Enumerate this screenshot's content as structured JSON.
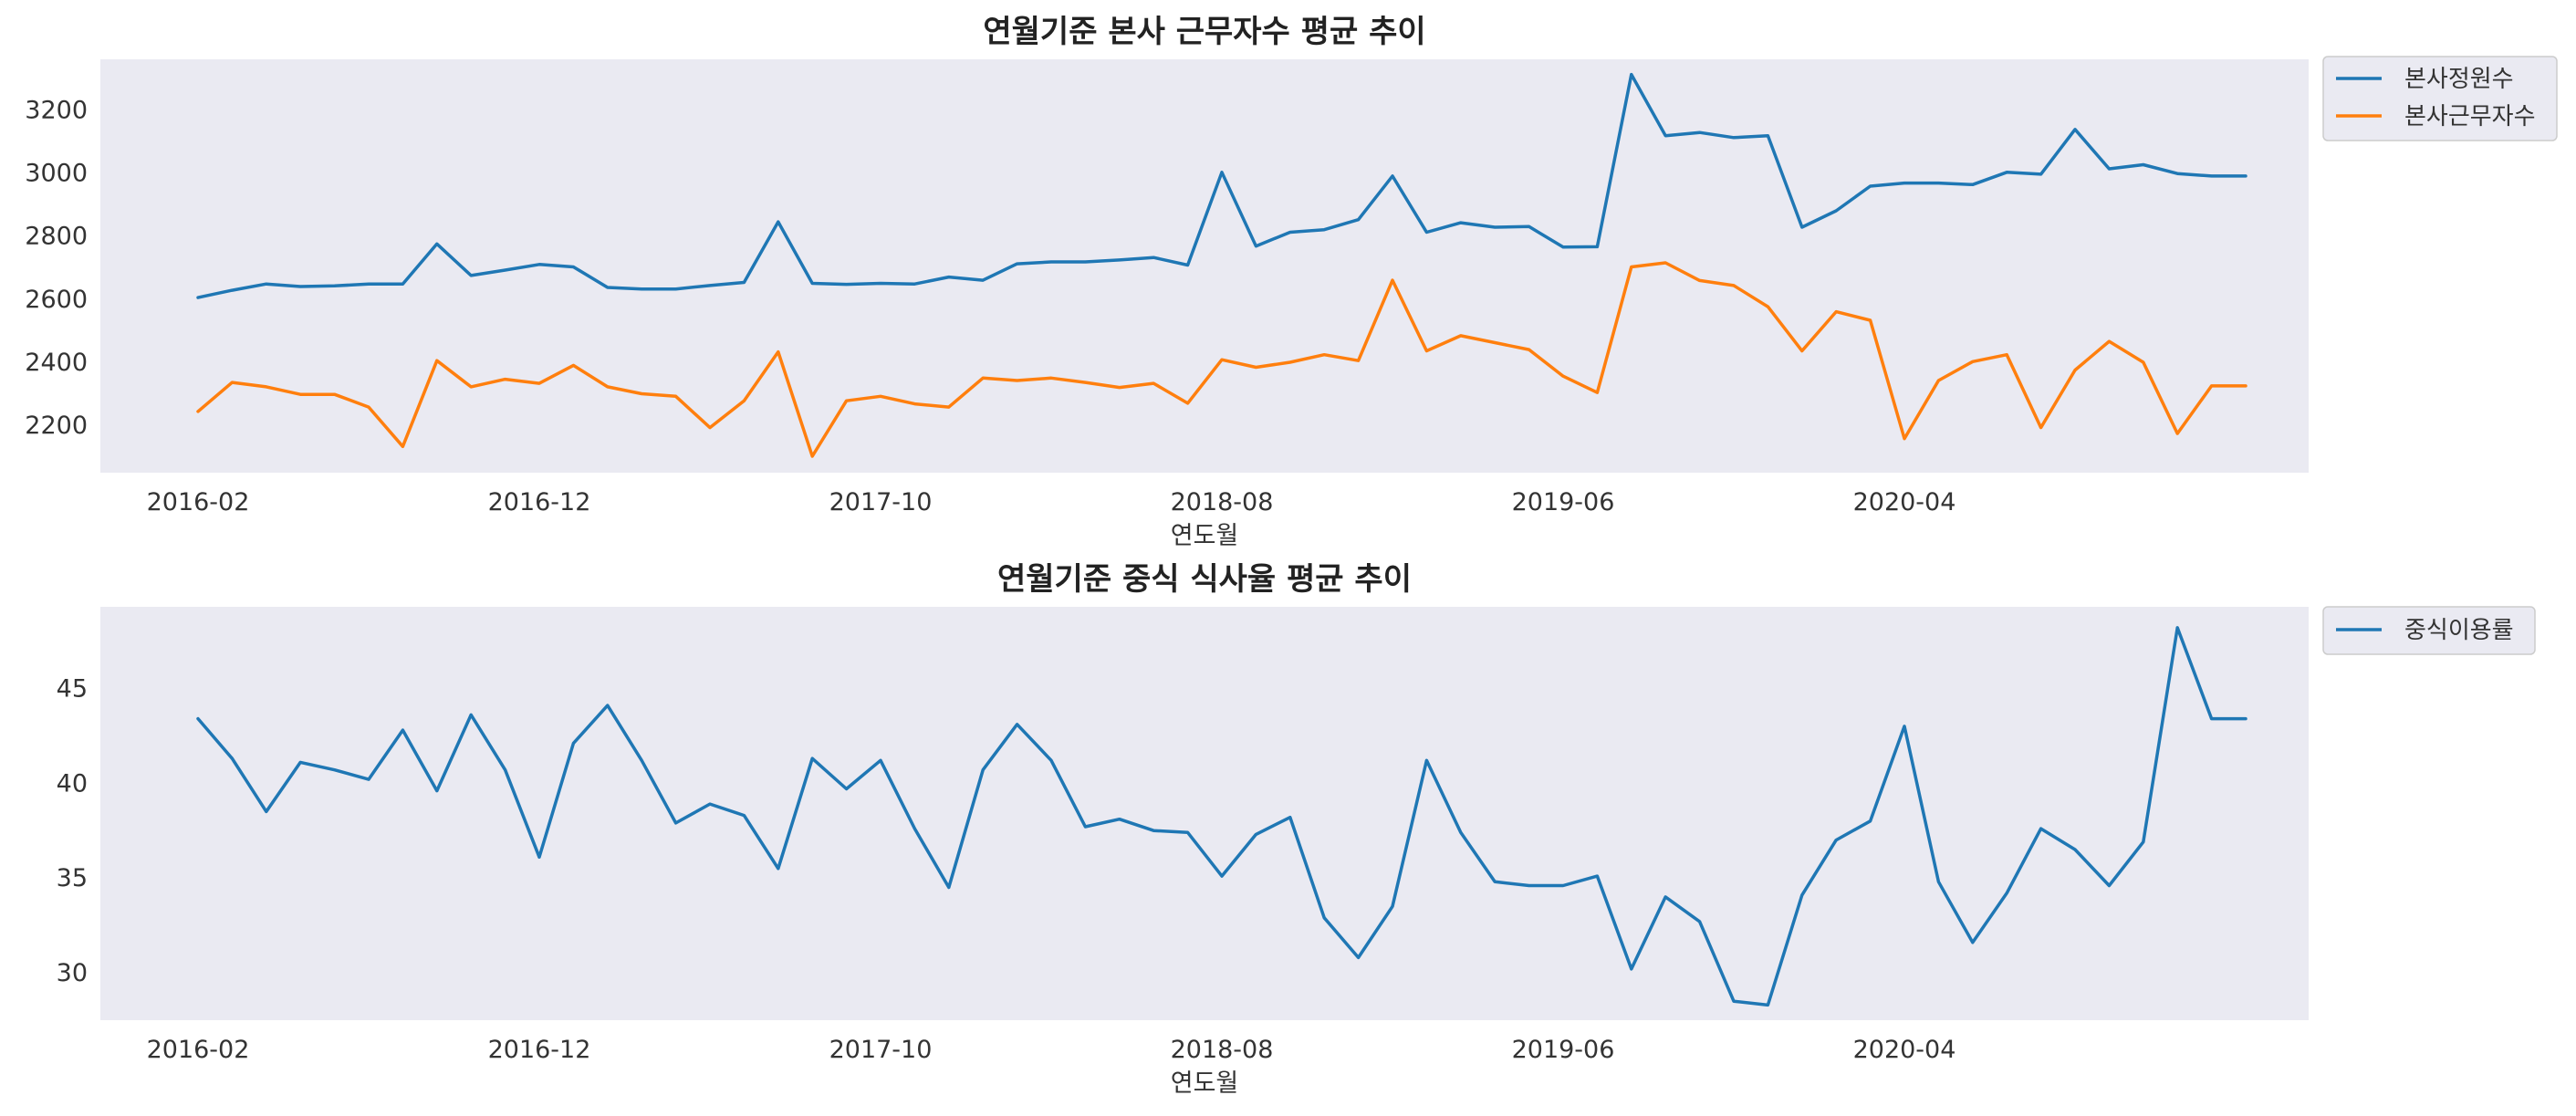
{
  "colors": {
    "background": "#EAEAF2",
    "series1": "#1F77B4",
    "series2": "#FF7F0E"
  },
  "chart_data": [
    {
      "type": "line",
      "title": "연월기준 본사 근무자수 평균 추이",
      "xlabel": "연도월",
      "ylabel": "",
      "grid": false,
      "legend_position": "outside-top-right",
      "x": [
        "2016-02",
        "2016-03",
        "2016-04",
        "2016-05",
        "2016-06",
        "2016-07",
        "2016-08",
        "2016-09",
        "2016-10",
        "2016-11",
        "2016-12",
        "2017-01",
        "2017-02",
        "2017-03",
        "2017-04",
        "2017-05",
        "2017-06",
        "2017-07",
        "2017-08",
        "2017-09",
        "2017-10",
        "2017-11",
        "2017-12",
        "2018-01",
        "2018-02",
        "2018-03",
        "2018-04",
        "2018-05",
        "2018-06",
        "2018-07",
        "2018-08",
        "2018-09",
        "2018-10",
        "2018-11",
        "2018-12",
        "2019-01",
        "2019-02",
        "2019-03",
        "2019-04",
        "2019-05",
        "2019-06",
        "2019-07",
        "2019-08",
        "2019-09",
        "2019-10",
        "2019-11",
        "2019-12",
        "2020-01",
        "2020-02",
        "2020-03",
        "2020-04",
        "2020-05",
        "2020-06",
        "2020-07",
        "2020-08",
        "2020-09",
        "2020-10",
        "2020-11",
        "2020-12",
        "2021-01",
        "2021-02"
      ],
      "xticks": [
        "2016-02",
        "2016-12",
        "2017-10",
        "2018-08",
        "2019-06",
        "2020-04"
      ],
      "yticks": [
        2200,
        2400,
        2600,
        2800,
        3000,
        3200
      ],
      "ylim": [
        2050,
        3360
      ],
      "series": [
        {
          "name": "본사정원수",
          "color": "#1F77B4",
          "values": [
            2605,
            2628,
            2648,
            2640,
            2642,
            2648,
            2648,
            2775,
            2675,
            2692,
            2710,
            2702,
            2637,
            2632,
            2632,
            2643,
            2653,
            2845,
            2650,
            2647,
            2650,
            2648,
            2670,
            2660,
            2712,
            2718,
            2718,
            2724,
            2732,
            2708,
            3002,
            2768,
            2812,
            2820,
            2852,
            2990,
            2812,
            2842,
            2828,
            2830,
            2765,
            2766,
            3312,
            3118,
            3128,
            3112,
            3118,
            2828,
            2880,
            2958,
            2968,
            2968,
            2963,
            3002,
            2996,
            3138,
            3013,
            3026,
            2998,
            2990,
            2990
          ]
        },
        {
          "name": "본사근무자수",
          "color": "#FF7F0E",
          "values": [
            2244,
            2336,
            2322,
            2298,
            2298,
            2258,
            2133,
            2405,
            2322,
            2346,
            2333,
            2390,
            2322,
            2300,
            2292,
            2193,
            2278,
            2433,
            2102,
            2278,
            2292,
            2268,
            2258,
            2350,
            2342,
            2350,
            2336,
            2320,
            2333,
            2270,
            2408,
            2384,
            2400,
            2424,
            2405,
            2660,
            2436,
            2484,
            2462,
            2440,
            2356,
            2304,
            2702,
            2715,
            2659,
            2643,
            2576,
            2436,
            2560,
            2533,
            2158,
            2342,
            2402,
            2424,
            2193,
            2375,
            2466,
            2400,
            2174,
            2325,
            2325
          ]
        }
      ]
    },
    {
      "type": "line",
      "title": "연월기준 중식 식사율 평균 추이",
      "xlabel": "연도월",
      "ylabel": "",
      "grid": false,
      "legend_position": "outside-top-right",
      "x": [
        "2016-02",
        "2016-03",
        "2016-04",
        "2016-05",
        "2016-06",
        "2016-07",
        "2016-08",
        "2016-09",
        "2016-10",
        "2016-11",
        "2016-12",
        "2017-01",
        "2017-02",
        "2017-03",
        "2017-04",
        "2017-05",
        "2017-06",
        "2017-07",
        "2017-08",
        "2017-09",
        "2017-10",
        "2017-11",
        "2017-12",
        "2018-01",
        "2018-02",
        "2018-03",
        "2018-04",
        "2018-05",
        "2018-06",
        "2018-07",
        "2018-08",
        "2018-09",
        "2018-10",
        "2018-11",
        "2018-12",
        "2019-01",
        "2019-02",
        "2019-03",
        "2019-04",
        "2019-05",
        "2019-06",
        "2019-07",
        "2019-08",
        "2019-09",
        "2019-10",
        "2019-11",
        "2019-12",
        "2020-01",
        "2020-02",
        "2020-03",
        "2020-04",
        "2020-05",
        "2020-06",
        "2020-07",
        "2020-08",
        "2020-09",
        "2020-10",
        "2020-11",
        "2020-12",
        "2021-01",
        "2021-02"
      ],
      "xticks": [
        "2016-02",
        "2016-12",
        "2017-10",
        "2018-08",
        "2019-06",
        "2020-04"
      ],
      "yticks": [
        30,
        35,
        40,
        45
      ],
      "ylim": [
        27.5,
        49.3
      ],
      "series": [
        {
          "name": "중식이용률",
          "color": "#1F77B4",
          "values": [
            43.4,
            41.3,
            38.5,
            41.1,
            40.7,
            40.2,
            42.8,
            39.6,
            43.6,
            40.7,
            36.1,
            42.1,
            44.1,
            41.2,
            37.9,
            38.9,
            38.3,
            35.5,
            41.3,
            39.7,
            41.2,
            37.6,
            34.5,
            40.7,
            43.1,
            41.2,
            37.7,
            38.1,
            37.5,
            37.4,
            35.1,
            37.3,
            38.2,
            32.9,
            30.8,
            33.5,
            41.2,
            37.4,
            34.8,
            34.6,
            34.6,
            35.1,
            30.2,
            34.0,
            32.7,
            28.5,
            28.3,
            34.1,
            37.0,
            38.0,
            43.0,
            34.8,
            31.6,
            34.2,
            37.6,
            36.5,
            34.6,
            36.9,
            48.2,
            43.4,
            43.4
          ]
        }
      ]
    }
  ]
}
